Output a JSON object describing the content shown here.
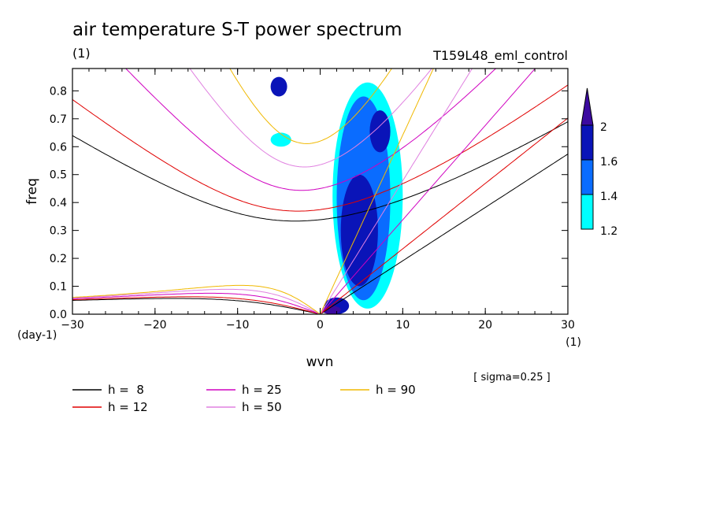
{
  "chart_data": {
    "type": "line",
    "title": "air temperature S-T power spectrum",
    "left_subtitle": "(1)",
    "right_subtitle": "T159L48_eml_control",
    "xlabel": "wvn",
    "ylabel": "freq",
    "x_unit": "(1)",
    "y_unit": "(day-1)",
    "xlim": [
      -30,
      30
    ],
    "ylim": [
      0,
      0.88
    ],
    "xticks": [
      -30,
      -20,
      -10,
      0,
      10,
      20,
      30
    ],
    "yticks": [
      0.0,
      0.1,
      0.2,
      0.3,
      0.4,
      0.5,
      0.6,
      0.7,
      0.8
    ],
    "ytick_labels": [
      "0.0",
      "0.1",
      "0.2",
      "0.3",
      "0.4",
      "0.5",
      "0.6",
      "0.7",
      "0.8"
    ],
    "note": "[ sigma=0.25 ]",
    "colorbar": {
      "levels": [
        "1.2",
        "1.4",
        "1.6",
        "2"
      ],
      "colors": [
        "#00ffff",
        "#0a6cff",
        "#0a14b8",
        "#3c0aa0"
      ]
    },
    "series": [
      {
        "name": "h =  8",
        "h": 8,
        "color": "#000000"
      },
      {
        "name": "h = 12",
        "h": 12,
        "color": "#e00000"
      },
      {
        "name": "h = 25",
        "h": 25,
        "color": "#d000c0"
      },
      {
        "name": "h = 50",
        "h": 50,
        "color": "#e080e0"
      },
      {
        "name": "h = 90",
        "h": 90,
        "color": "#f0b800"
      }
    ],
    "shaded_regions": [
      {
        "level": "2",
        "x": [
          0.2,
          2.5
        ],
        "y": [
          0.0,
          0.03
        ]
      },
      {
        "level": "1.6",
        "x": [
          0.5,
          3.5
        ],
        "y": [
          0.0,
          0.06
        ]
      },
      {
        "level": "1.6",
        "x": [
          2.5,
          7.0
        ],
        "y": [
          0.1,
          0.5
        ]
      },
      {
        "level": "1.6",
        "x": [
          6.0,
          8.5
        ],
        "y": [
          0.58,
          0.73
        ]
      },
      {
        "level": "1.4",
        "x": [
          2.0,
          8.5
        ],
        "y": [
          0.05,
          0.78
        ]
      },
      {
        "level": "1.2",
        "x": [
          1.5,
          10.0
        ],
        "y": [
          0.02,
          0.83
        ]
      },
      {
        "level": "1.6",
        "x": [
          -6.0,
          -4.0
        ],
        "y": [
          0.78,
          0.85
        ]
      },
      {
        "level": "1.2",
        "x": [
          -6.0,
          -3.5
        ],
        "y": [
          0.6,
          0.65
        ]
      }
    ]
  }
}
